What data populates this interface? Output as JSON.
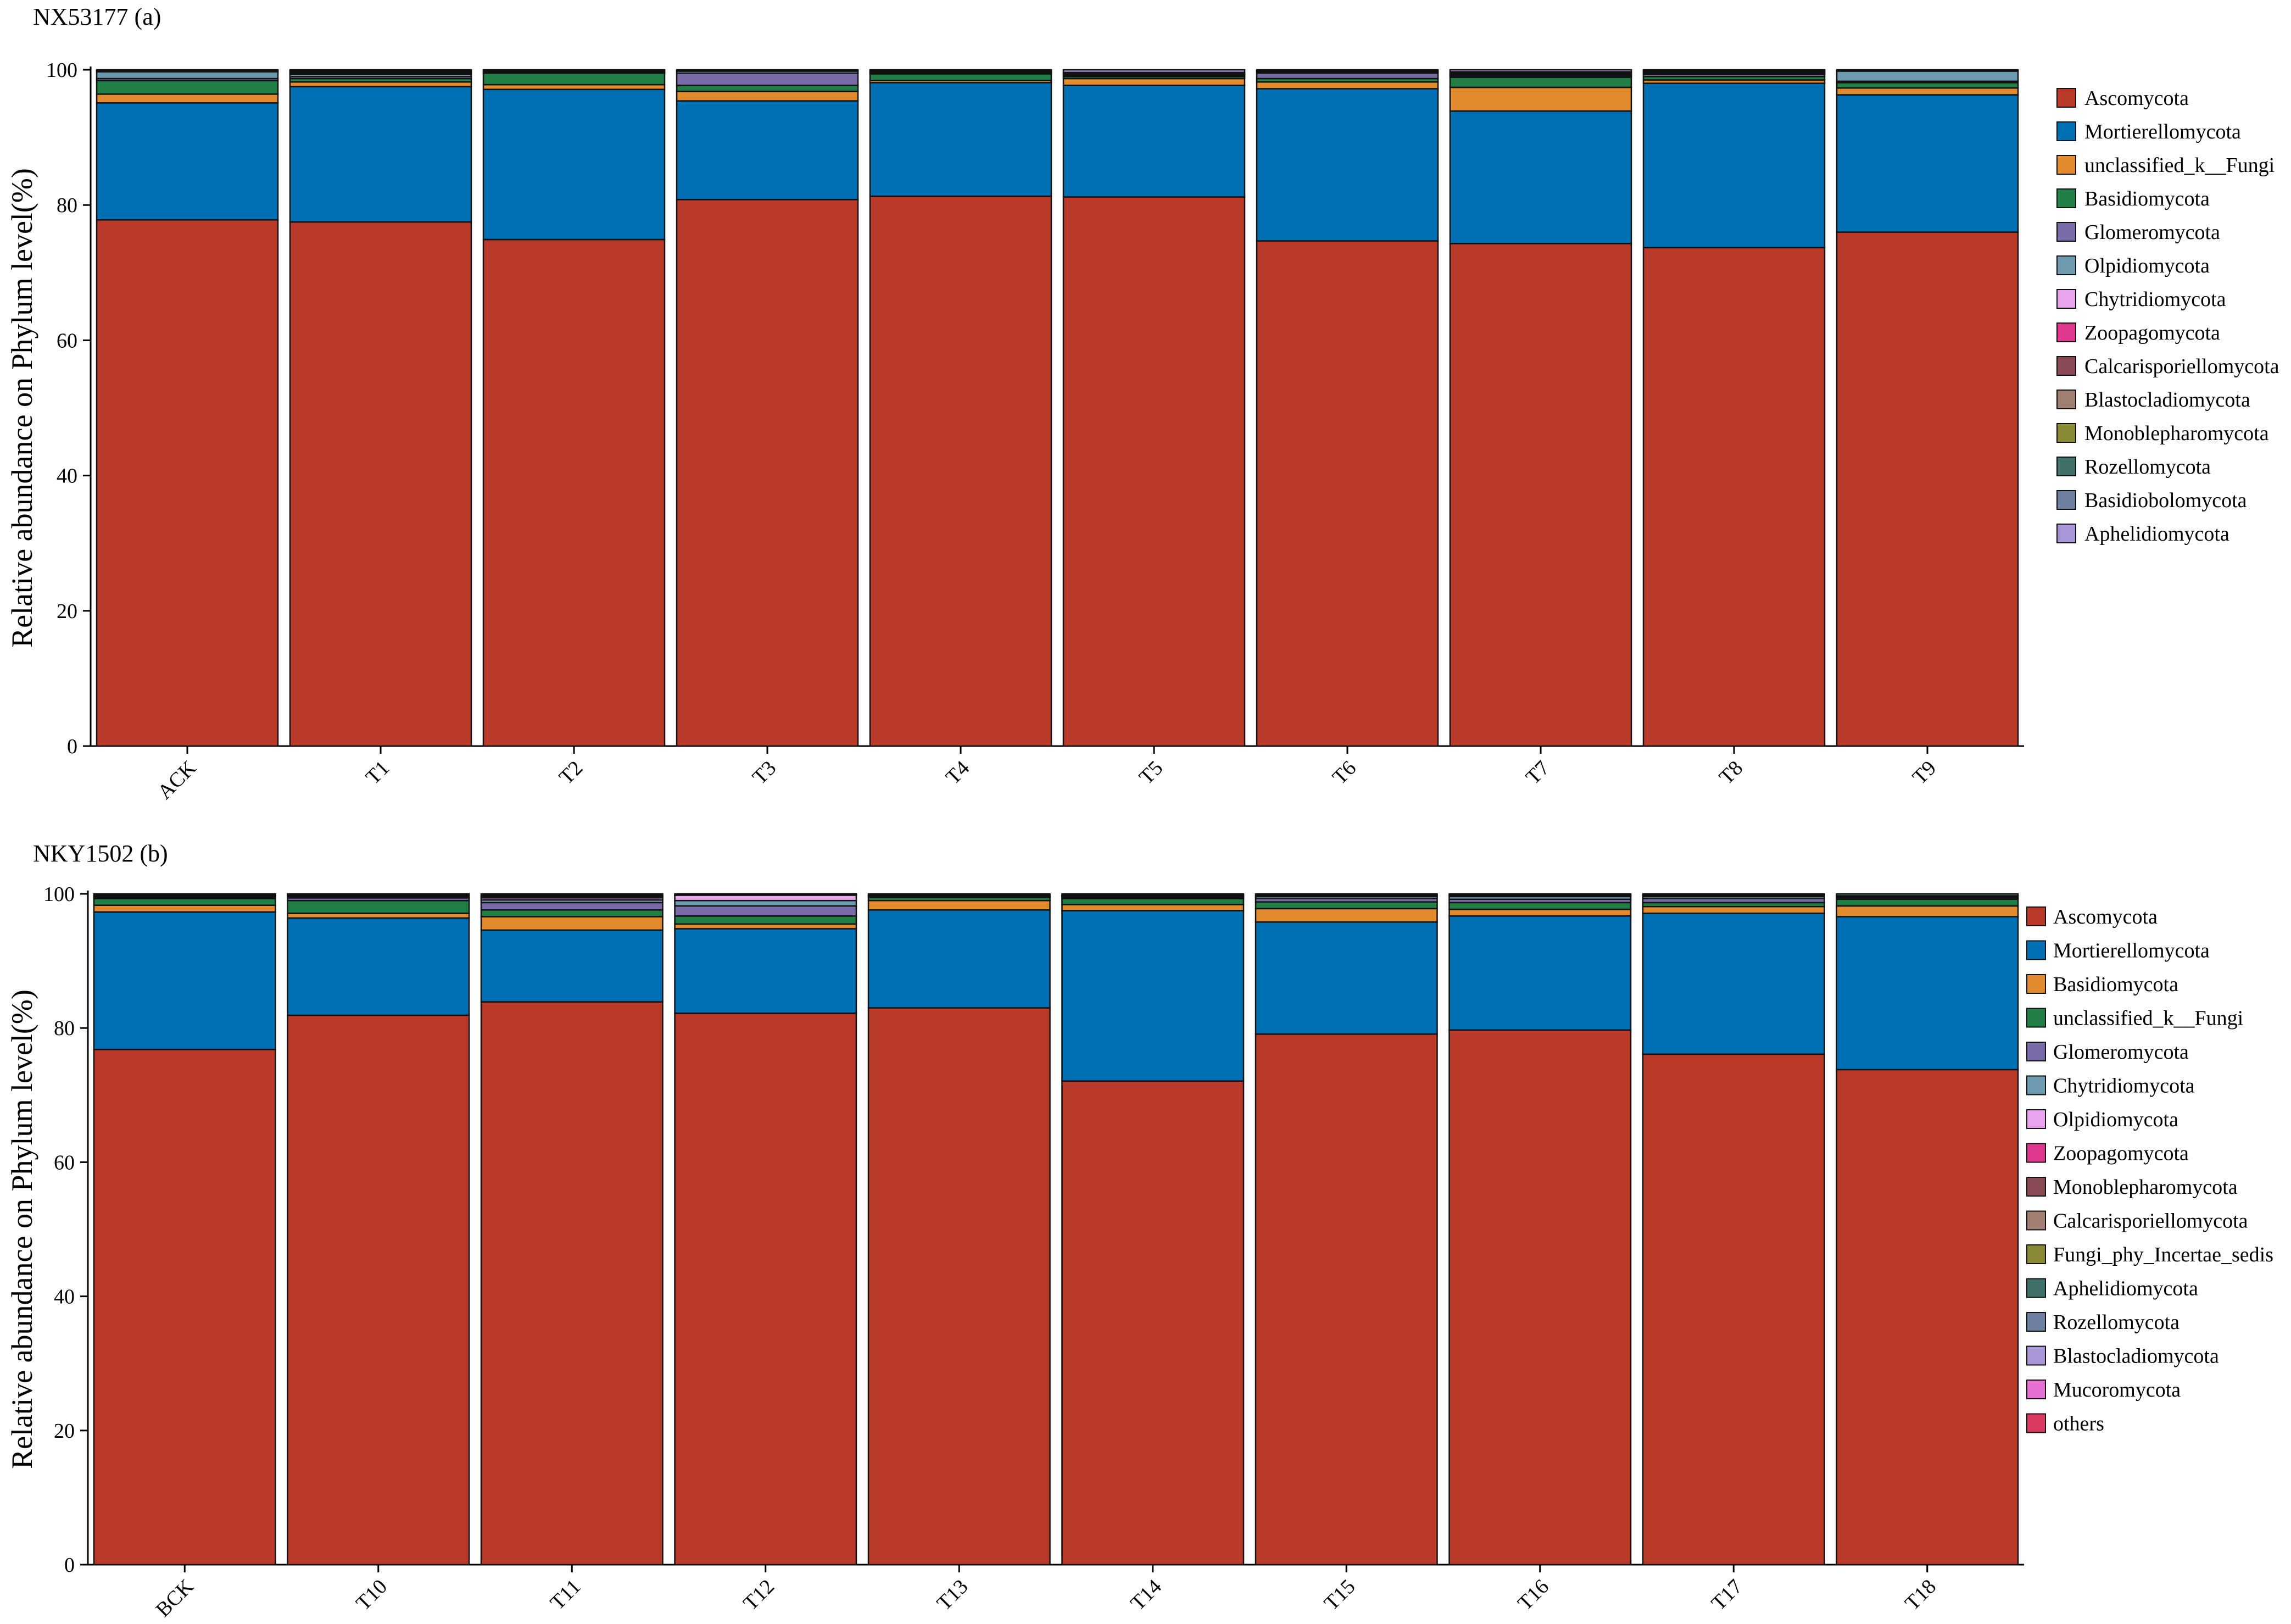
{
  "chart_data": [
    {
      "type": "bar",
      "stacked": true,
      "title": "NX53177 (a)",
      "ylabel": "Relative abundance on Phylum level(%)",
      "xlabel": "",
      "ylim": [
        0,
        100
      ],
      "yticks": [
        "0",
        "20",
        "40",
        "60",
        "80",
        "100"
      ],
      "categories": [
        "ACK",
        "T1",
        "T2",
        "T3",
        "T4",
        "T5",
        "T6",
        "T7",
        "T8",
        "T9"
      ],
      "legend": [
        "Ascomycota",
        "Mortierellomycota",
        "unclassified_k__Fungi",
        "Basidiomycota",
        "Glomeromycota",
        "Olpidiomycota",
        "Chytridiomycota",
        "Zoopagomycota",
        "Calcarisporiellomycota",
        "Blastocladiomycota",
        "Monoblepharomycota",
        "Rozellomycota",
        "Basidiobolomycota",
        "Aphelidiomycota"
      ],
      "colors": [
        "#BA3A2A",
        "#0070B4",
        "#E18A2E",
        "#217E45",
        "#7A6CA8",
        "#6E9BB0",
        "#E9A4F0",
        "#E0388E",
        "#8A4A55",
        "#A07F72",
        "#8A8A34",
        "#3E6F68",
        "#6E7FA0",
        "#A996D6"
      ],
      "series": [
        {
          "name": "Ascomycota",
          "values": [
            77.8,
            77.5,
            74.9,
            80.8,
            81.3,
            81.2,
            74.7,
            74.3,
            73.7,
            76.0
          ]
        },
        {
          "name": "Mortierellomycota",
          "values": [
            17.3,
            20.0,
            22.2,
            14.6,
            16.8,
            16.5,
            22.5,
            19.6,
            24.3,
            20.3
          ]
        },
        {
          "name": "unclassified_k__Fungi",
          "values": [
            1.3,
            0.7,
            0.7,
            1.4,
            0.3,
            1.0,
            1.0,
            3.5,
            0.5,
            1.0
          ]
        },
        {
          "name": "Basidiomycota",
          "values": [
            2.0,
            0.5,
            1.7,
            0.9,
            1.0,
            0.3,
            0.5,
            1.5,
            0.5,
            0.8
          ]
        },
        {
          "name": "Glomeromycota",
          "values": [
            0.3,
            0.3,
            0.0,
            1.8,
            0.1,
            0.2,
            0.8,
            0.2,
            0.3,
            0.2
          ]
        },
        {
          "name": "Olpidiomycota",
          "values": [
            1.0,
            0.3,
            0.0,
            0.3,
            0.0,
            0.0,
            0.2,
            0.1,
            0.2,
            1.5
          ]
        },
        {
          "name": "Chytridiomycota",
          "values": [
            0.1,
            0.2,
            0.0,
            0.1,
            0.1,
            0.2,
            0.1,
            0.2,
            0.1,
            0.1
          ]
        },
        {
          "name": "Zoopagomycota",
          "values": [
            0.0,
            0.0,
            0.0,
            0.0,
            0.0,
            0.0,
            0.0,
            0.0,
            0.0,
            0.0
          ]
        },
        {
          "name": "Calcarisporiellomycota",
          "values": [
            0.1,
            0.1,
            0.1,
            0.0,
            0.1,
            0.1,
            0.1,
            0.1,
            0.1,
            0.0
          ]
        },
        {
          "name": "Blastocladiomycota",
          "values": [
            0.0,
            0.0,
            0.0,
            0.0,
            0.0,
            0.0,
            0.0,
            0.0,
            0.0,
            0.0
          ]
        },
        {
          "name": "Monoblepharomycota",
          "values": [
            0.0,
            0.0,
            0.0,
            0.0,
            0.0,
            0.0,
            0.0,
            0.0,
            0.0,
            0.0
          ]
        },
        {
          "name": "Rozellomycota",
          "values": [
            0.1,
            0.2,
            0.2,
            0.0,
            0.1,
            0.1,
            0.0,
            0.2,
            0.1,
            0.0
          ]
        },
        {
          "name": "Basidiobolomycota",
          "values": [
            0.0,
            0.1,
            0.0,
            0.0,
            0.0,
            0.0,
            0.0,
            0.0,
            0.0,
            0.1
          ]
        },
        {
          "name": "Aphelidiomycota",
          "values": [
            0.0,
            0.1,
            0.2,
            0.1,
            0.2,
            0.4,
            0.1,
            0.3,
            0.2,
            0.0
          ]
        }
      ]
    },
    {
      "type": "bar",
      "stacked": true,
      "title": "NKY1502 (b)",
      "ylabel": "Relative abundance on Phylum level(%)",
      "xlabel": "",
      "ylim": [
        0,
        100
      ],
      "yticks": [
        "0",
        "20",
        "40",
        "60",
        "80",
        "100"
      ],
      "categories": [
        "BCK",
        "T10",
        "T11",
        "T12",
        "T13",
        "T14",
        "T15",
        "T16",
        "T17",
        "T18"
      ],
      "legend": [
        "Ascomycota",
        "Mortierellomycota",
        "Basidiomycota",
        "unclassified_k__Fungi",
        "Glomeromycota",
        "Chytridiomycota",
        "Olpidiomycota",
        "Zoopagomycota",
        "Monoblepharomycota",
        "Calcarisporiellomycota",
        "Fungi_phy_Incertae_sedis",
        "Aphelidiomycota",
        "Rozellomycota",
        "Blastocladiomycota",
        "Mucoromycota",
        "others"
      ],
      "colors": [
        "#BA3A2A",
        "#0070B4",
        "#E18A2E",
        "#217E45",
        "#7A6CA8",
        "#6E9BB0",
        "#E9A4F0",
        "#E0388E",
        "#8A4A55",
        "#A07F72",
        "#8A8A34",
        "#3E6F68",
        "#6E7FA0",
        "#A996D6",
        "#E66FD2",
        "#DB3B5E"
      ],
      "series": [
        {
          "name": "Ascomycota",
          "values": [
            76.8,
            81.9,
            83.9,
            82.2,
            83.0,
            72.1,
            79.1,
            79.7,
            76.1,
            73.8
          ]
        },
        {
          "name": "Mortierellomycota",
          "values": [
            20.5,
            14.5,
            10.7,
            12.6,
            14.6,
            25.4,
            16.7,
            17.0,
            21.0,
            22.8
          ]
        },
        {
          "name": "Basidiomycota",
          "values": [
            1.0,
            0.7,
            2.0,
            0.7,
            1.4,
            0.9,
            2.0,
            1.0,
            1.0,
            1.6
          ]
        },
        {
          "name": "unclassified_k__Fungi",
          "values": [
            1.0,
            1.9,
            1.0,
            1.2,
            0.5,
            0.9,
            1.0,
            1.0,
            0.6,
            1.0
          ]
        },
        {
          "name": "Glomeromycota",
          "values": [
            0.2,
            0.4,
            1.1,
            1.5,
            0.1,
            0.2,
            0.5,
            0.5,
            0.6,
            0.2
          ]
        },
        {
          "name": "Chytridiomycota",
          "values": [
            0.2,
            0.2,
            0.4,
            0.8,
            0.2,
            0.2,
            0.3,
            0.4,
            0.3,
            0.2
          ]
        },
        {
          "name": "Olpidiomycota",
          "values": [
            0.1,
            0.2,
            0.3,
            0.8,
            0.0,
            0.1,
            0.2,
            0.2,
            0.2,
            0.1
          ]
        },
        {
          "name": "Zoopagomycota",
          "values": [
            0.0,
            0.0,
            0.1,
            0.1,
            0.0,
            0.0,
            0.0,
            0.0,
            0.0,
            0.0
          ]
        },
        {
          "name": "Monoblepharomycota",
          "values": [
            0.0,
            0.0,
            0.1,
            0.0,
            0.0,
            0.0,
            0.0,
            0.0,
            0.0,
            0.0
          ]
        },
        {
          "name": "Calcarisporiellomycota",
          "values": [
            0.0,
            0.0,
            0.0,
            0.0,
            0.0,
            0.0,
            0.0,
            0.0,
            0.0,
            0.0
          ]
        },
        {
          "name": "Fungi_phy_Incertae_sedis",
          "values": [
            0.0,
            0.0,
            0.0,
            0.0,
            0.0,
            0.0,
            0.0,
            0.0,
            0.0,
            0.0
          ]
        },
        {
          "name": "Aphelidiomycota",
          "values": [
            0.2,
            0.1,
            0.2,
            0.1,
            0.2,
            0.2,
            0.2,
            0.2,
            0.1,
            0.3
          ]
        },
        {
          "name": "Rozellomycota",
          "values": [
            0.0,
            0.0,
            0.0,
            0.0,
            0.0,
            0.0,
            0.0,
            0.0,
            0.0,
            0.0
          ]
        },
        {
          "name": "Blastocladiomycota",
          "values": [
            0.0,
            0.1,
            0.2,
            0.0,
            0.0,
            0.0,
            0.0,
            0.0,
            0.1,
            0.0
          ]
        },
        {
          "name": "Mucoromycota",
          "values": [
            0.0,
            0.0,
            0.0,
            0.0,
            0.0,
            0.0,
            0.0,
            0.0,
            0.0,
            0.0
          ]
        },
        {
          "name": "others",
          "values": [
            0.0,
            0.0,
            0.0,
            0.0,
            0.0,
            0.0,
            0.0,
            0.0,
            0.0,
            0.0
          ]
        }
      ]
    }
  ]
}
